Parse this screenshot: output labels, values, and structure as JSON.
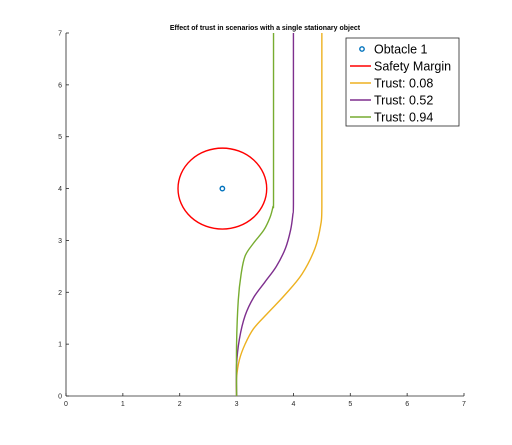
{
  "chart_data": {
    "type": "line",
    "title": "Effect of trust in scenarios with a single stationary object",
    "xlabel": "",
    "ylabel": "",
    "xlim": [
      0,
      7
    ],
    "ylim": [
      0,
      7
    ],
    "xticks": [
      0,
      1,
      2,
      3,
      4,
      5,
      6,
      7
    ],
    "yticks": [
      0,
      1,
      2,
      3,
      4,
      5,
      6,
      7
    ],
    "grid": false,
    "legend_position": "top-right",
    "obstacle": {
      "name": "Obtacle 1",
      "x": 2.75,
      "y": 4.0,
      "color": "#0072BD"
    },
    "safety_margin": {
      "name": "Safety Margin",
      "center": [
        2.75,
        4.0
      ],
      "radius": 0.78,
      "color": "#FF0000"
    },
    "series": [
      {
        "name": "Trust: 0.08",
        "color": "#EDB120",
        "x": [
          3.0,
          3.0,
          3.05,
          3.15,
          3.3,
          3.55,
          3.85,
          4.15,
          4.38,
          4.48,
          4.5,
          4.5,
          4.5
        ],
        "y": [
          0.0,
          0.35,
          0.7,
          1.0,
          1.3,
          1.6,
          1.95,
          2.35,
          2.85,
          3.3,
          3.65,
          5.0,
          7.0
        ]
      },
      {
        "name": "Trust: 0.52",
        "color": "#7E2F8E",
        "x": [
          3.0,
          3.0,
          3.05,
          3.15,
          3.3,
          3.5,
          3.7,
          3.86,
          3.95,
          3.99,
          4.0,
          4.0,
          4.0
        ],
        "y": [
          0.0,
          0.6,
          1.1,
          1.55,
          1.9,
          2.2,
          2.5,
          2.85,
          3.2,
          3.5,
          3.7,
          5.0,
          7.0
        ]
      },
      {
        "name": "Trust: 0.94",
        "color": "#77AC30",
        "x": [
          3.0,
          3.0,
          3.03,
          3.08,
          3.15,
          3.3,
          3.48,
          3.59,
          3.64,
          3.65,
          3.65,
          3.65
        ],
        "y": [
          0.0,
          1.0,
          1.85,
          2.35,
          2.7,
          2.95,
          3.2,
          3.45,
          3.65,
          3.75,
          5.0,
          7.0
        ]
      }
    ]
  }
}
